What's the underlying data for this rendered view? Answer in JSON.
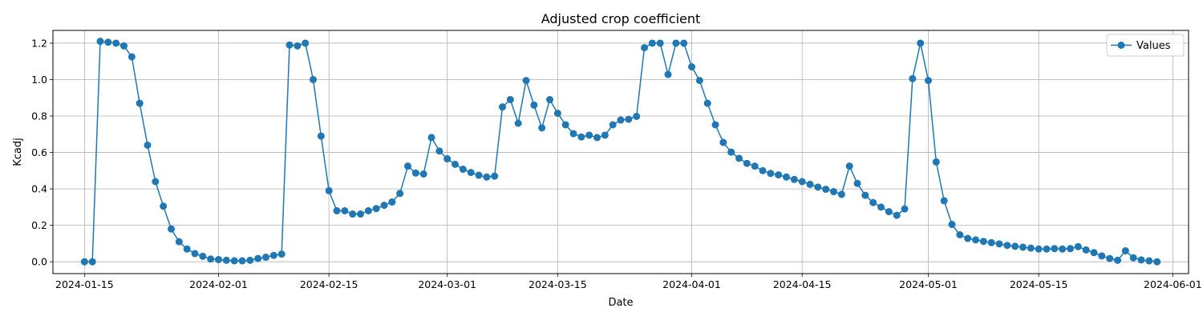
{
  "chart_data": {
    "type": "line",
    "title": "Adjusted crop coefficient",
    "xlabel": "Date",
    "ylabel": "Kcadj",
    "x_start": "2024-01-15",
    "xlim": [
      "2024-01-11",
      "2024-06-03"
    ],
    "ylim": [
      -0.065,
      1.27
    ],
    "x_ticks": [
      "2024-01-15",
      "2024-02-01",
      "2024-02-15",
      "2024-03-01",
      "2024-03-15",
      "2024-04-01",
      "2024-04-15",
      "2024-05-01",
      "2024-05-15",
      "2024-06-01"
    ],
    "y_ticks": [
      0.0,
      0.2,
      0.4,
      0.6,
      0.8,
      1.0,
      1.2
    ],
    "y_tick_labels": [
      "0.0",
      "0.2",
      "0.4",
      "0.6",
      "0.8",
      "1.0",
      "1.2"
    ],
    "grid": true,
    "legend_position": "top-right",
    "series": [
      {
        "name": "Values",
        "color": "#1f77b4",
        "marker": "circle",
        "values": [
          0.0,
          0.0,
          1.21,
          1.205,
          1.2,
          1.185,
          1.125,
          0.87,
          0.64,
          0.44,
          0.305,
          0.18,
          0.11,
          0.07,
          0.045,
          0.03,
          0.015,
          0.012,
          0.008,
          0.005,
          0.005,
          0.008,
          0.018,
          0.025,
          0.035,
          0.042,
          1.19,
          1.185,
          1.2,
          1.0,
          0.69,
          0.39,
          0.28,
          0.28,
          0.262,
          0.262,
          0.28,
          0.292,
          0.31,
          0.328,
          0.375,
          0.525,
          0.487,
          0.482,
          0.682,
          0.608,
          0.565,
          0.535,
          0.508,
          0.49,
          0.475,
          0.465,
          0.47,
          0.85,
          0.89,
          0.76,
          0.995,
          0.86,
          0.735,
          0.89,
          0.815,
          0.752,
          0.703,
          0.685,
          0.695,
          0.682,
          0.695,
          0.752,
          0.778,
          0.782,
          0.798,
          1.175,
          1.2,
          1.2,
          1.028,
          1.2,
          1.2,
          1.07,
          0.995,
          0.87,
          0.752,
          0.655,
          0.602,
          0.568,
          0.54,
          0.525,
          0.5,
          0.485,
          0.477,
          0.465,
          0.452,
          0.44,
          0.425,
          0.41,
          0.398,
          0.385,
          0.37,
          0.525,
          0.43,
          0.365,
          0.325,
          0.3,
          0.275,
          0.255,
          0.29,
          1.005,
          1.2,
          0.995,
          0.548,
          0.335,
          0.205,
          0.148,
          0.128,
          0.12,
          0.112,
          0.105,
          0.098,
          0.09,
          0.085,
          0.08,
          0.075,
          0.07,
          0.07,
          0.072,
          0.07,
          0.072,
          0.083,
          0.065,
          0.05,
          0.032,
          0.018,
          0.008,
          0.06,
          0.022,
          0.01,
          0.005,
          0.0
        ]
      }
    ]
  }
}
